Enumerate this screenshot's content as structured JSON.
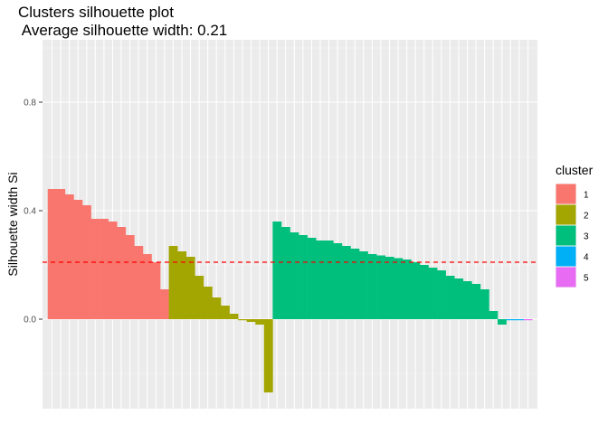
{
  "chart_data": {
    "type": "bar",
    "title": "Clusters silhouette plot",
    "subtitle": " Average silhouette width: 0.21",
    "xlabel": "",
    "ylabel": "Silhouette width Si",
    "ylim": [
      -0.33,
      1.03
    ],
    "yticks": [
      0.0,
      0.4,
      0.8
    ],
    "yticklabels": [
      "0.0",
      "0.4",
      "0.8"
    ],
    "average_line": 0.21,
    "grid": true,
    "legend": {
      "title": "cluster",
      "position": "right",
      "entries": [
        {
          "label": "1",
          "color": "#F8766D"
        },
        {
          "label": "2",
          "color": "#A3A500"
        },
        {
          "label": "3",
          "color": "#00BF7D"
        },
        {
          "label": "4",
          "color": "#00B0F6"
        },
        {
          "label": "5",
          "color": "#E76BF3"
        }
      ]
    },
    "clusters": [
      {
        "cluster": "1",
        "values": [
          0.48,
          0.48,
          0.46,
          0.44,
          0.42,
          0.37,
          0.37,
          0.36,
          0.34,
          0.31,
          0.27,
          0.24,
          0.21,
          0.11
        ]
      },
      {
        "cluster": "2",
        "values": [
          0.27,
          0.25,
          0.23,
          0.16,
          0.12,
          0.08,
          0.05,
          0.02,
          0.0,
          -0.01,
          -0.02,
          -0.27
        ]
      },
      {
        "cluster": "3",
        "values": [
          0.36,
          0.34,
          0.32,
          0.31,
          0.3,
          0.29,
          0.29,
          0.28,
          0.27,
          0.26,
          0.25,
          0.24,
          0.235,
          0.23,
          0.225,
          0.22,
          0.21,
          0.2,
          0.19,
          0.18,
          0.16,
          0.15,
          0.14,
          0.13,
          0.11,
          0.03,
          -0.02
        ]
      },
      {
        "cluster": "4",
        "values": [
          0.0,
          0.0
        ]
      },
      {
        "cluster": "5",
        "values": [
          0.0
        ]
      }
    ]
  }
}
